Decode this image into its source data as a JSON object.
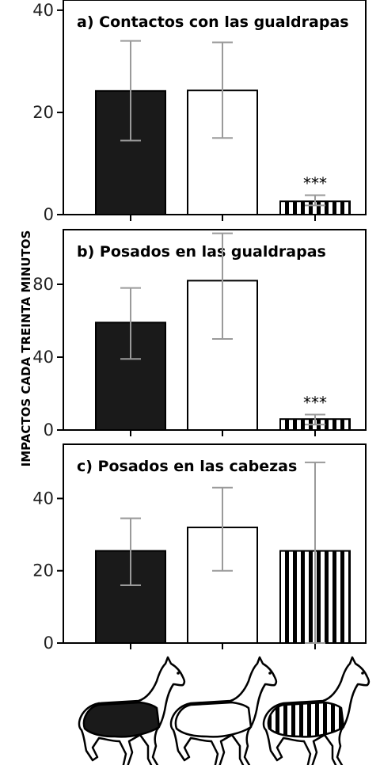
{
  "ylabel": "IMPACTOS CADA TREINTA MINUTOS",
  "fills": [
    "black",
    "white",
    "stripes"
  ],
  "colors": {
    "bar_dark": "#1a1a1a",
    "error_bar": "#9a9a9a",
    "axis": "#000000"
  },
  "icons": [
    "horse-black-blanket-icon",
    "horse-white-blanket-icon",
    "horse-striped-blanket-icon"
  ],
  "chart_data": [
    {
      "type": "bar",
      "title": "a) Contactos con las gualdrapas",
      "ylim": [
        0,
        42
      ],
      "yticks": [
        0,
        20,
        40
      ],
      "series": [
        {
          "values": [
            24.2,
            24.3,
            2.6
          ],
          "err_low": [
            14.5,
            15,
            1.8
          ],
          "err_high": [
            34,
            33.7,
            3.8
          ]
        }
      ],
      "annotations": [
        "",
        "",
        "***"
      ]
    },
    {
      "type": "bar",
      "title": "b) Posados en las gualdrapas",
      "ylim": [
        0,
        110
      ],
      "yticks": [
        0,
        40,
        80
      ],
      "series": [
        {
          "values": [
            59,
            82,
            6
          ],
          "err_low": [
            39,
            50,
            3
          ],
          "err_high": [
            78,
            108,
            8.5
          ]
        }
      ],
      "annotations": [
        "",
        "",
        "***"
      ]
    },
    {
      "type": "bar",
      "title": "c) Posados en las cabezas",
      "ylim": [
        0,
        55
      ],
      "yticks": [
        0,
        20,
        40
      ],
      "series": [
        {
          "values": [
            25.5,
            32,
            25.5
          ],
          "err_low": [
            16,
            20,
            0
          ],
          "err_high": [
            34.5,
            43,
            50
          ]
        }
      ],
      "annotations": [
        "",
        "",
        ""
      ]
    }
  ]
}
